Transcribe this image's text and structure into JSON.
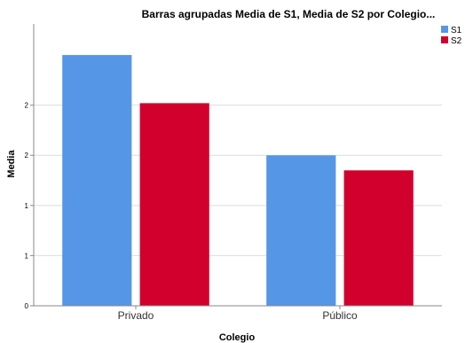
{
  "chart_data": {
    "type": "bar",
    "title": "Barras agrupadas Media de S1, Media de S2 por Colegio...",
    "xlabel": "Colegio",
    "ylabel": "Media",
    "categories": [
      "Privado",
      "Público"
    ],
    "series": [
      {
        "name": "S1",
        "values": [
          2.5,
          1.5
        ],
        "color": "#5596e6"
      },
      {
        "name": "S2",
        "values": [
          2.02,
          1.35
        ],
        "color": "#d2002d"
      }
    ],
    "ylim": [
      0,
      2.81
    ],
    "yticks": [
      0,
      0.5,
      1,
      1.5,
      2
    ],
    "ytick_labels": [
      "0",
      "1",
      "1",
      "2",
      "2"
    ],
    "grid": true,
    "legend_position": "top-right"
  }
}
